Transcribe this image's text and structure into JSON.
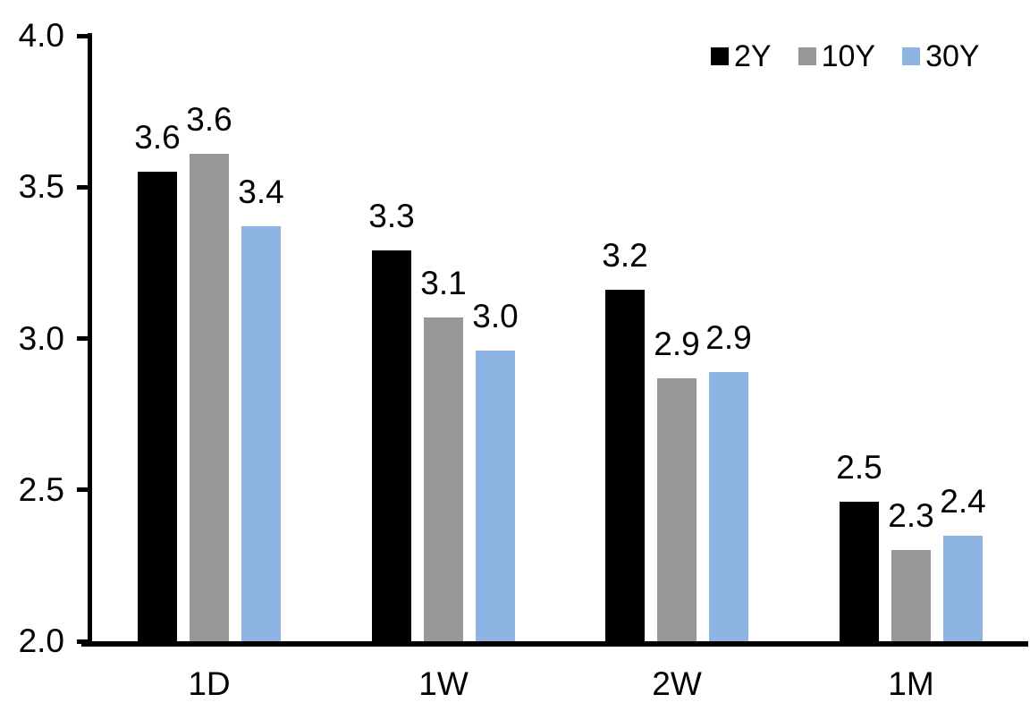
{
  "chart_data": {
    "type": "bar",
    "title": "",
    "categories": [
      "1D",
      "1W",
      "2W",
      "1M"
    ],
    "series": [
      {
        "name": "2Y",
        "color": "#000000",
        "values": [
          3.55,
          3.29,
          3.16,
          2.46
        ],
        "labels": [
          "3.6",
          "3.3",
          "3.2",
          "2.5"
        ]
      },
      {
        "name": "10Y",
        "color": "#979797",
        "values": [
          3.61,
          3.07,
          2.87,
          2.3
        ],
        "labels": [
          "3.6",
          "3.1",
          "2.9",
          "2.3"
        ]
      },
      {
        "name": "30Y",
        "color": "#8DB4E2",
        "values": [
          3.37,
          2.96,
          2.89,
          2.35
        ],
        "labels": [
          "3.4",
          "3.0",
          "2.9",
          "2.4"
        ]
      }
    ],
    "y_axis": {
      "min": 2.0,
      "max": 4.0,
      "tick_step": 0.5,
      "tick_labels": [
        "4.0",
        "3.5",
        "3.0",
        "2.5",
        "2.0"
      ]
    },
    "x_axis": {
      "tick_labels": [
        "1D",
        "1W",
        "2W",
        "1M"
      ]
    },
    "legend": {
      "position": "top-right",
      "entries": [
        "2Y",
        "10Y",
        "30Y"
      ]
    },
    "grid": false,
    "axis_color": "#000000",
    "background": "#FFFFFF"
  }
}
